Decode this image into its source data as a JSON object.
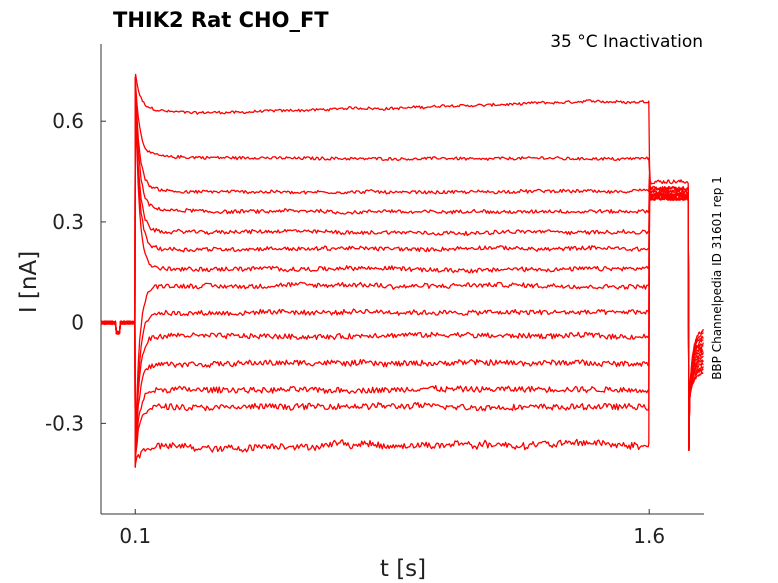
{
  "chart_data": {
    "type": "line",
    "title": "THIK2  Rat  CHO_FT",
    "subtitle": "35 °C  Inactivation",
    "side_note": "BBP Channelpedia ID 31601 rep 1",
    "xlabel": "t [s]",
    "ylabel": "I [nA]",
    "xlim": [
      0.0,
      1.76
    ],
    "ylim": [
      -0.57,
      0.83
    ],
    "xticks": [
      {
        "value": 0.1,
        "label": "0.1"
      },
      {
        "value": 1.6,
        "label": "1.6"
      }
    ],
    "yticks": [
      {
        "value": 0.6,
        "label": "0.6"
      },
      {
        "value": 0.3,
        "label": "0.3"
      },
      {
        "value": 0.0,
        "label": "0"
      },
      {
        "value": -0.3,
        "label": "-0.3"
      }
    ],
    "grid": false,
    "color": "#ff0000",
    "traces": [
      {
        "level": 0.62,
        "end": 0.66,
        "tail": 0.42,
        "after": -0.02
      },
      {
        "level": 0.49,
        "end": 0.49,
        "tail": 0.4,
        "after": -0.03
      },
      {
        "level": 0.39,
        "end": 0.39,
        "tail": 0.4,
        "after": -0.04
      },
      {
        "level": 0.33,
        "end": 0.33,
        "tail": 0.39,
        "after": -0.05
      },
      {
        "level": 0.27,
        "end": 0.27,
        "tail": 0.39,
        "after": -0.06
      },
      {
        "level": 0.22,
        "end": 0.22,
        "tail": 0.38,
        "after": -0.07
      },
      {
        "level": 0.16,
        "end": 0.16,
        "tail": 0.38,
        "after": -0.08
      },
      {
        "level": 0.11,
        "end": 0.11,
        "tail": 0.38,
        "after": -0.09
      },
      {
        "level": 0.03,
        "end": 0.03,
        "tail": 0.38,
        "after": -0.1
      },
      {
        "level": -0.04,
        "end": -0.04,
        "tail": 0.37,
        "after": -0.11
      },
      {
        "level": -0.12,
        "end": -0.12,
        "tail": 0.37,
        "after": -0.12
      },
      {
        "level": -0.2,
        "end": -0.2,
        "tail": 0.37,
        "after": -0.13
      },
      {
        "level": -0.25,
        "end": -0.25,
        "tail": 0.37,
        "after": -0.14
      },
      {
        "level": -0.37,
        "end": -0.36,
        "tail": 0.38,
        "after": -0.15
      }
    ]
  }
}
